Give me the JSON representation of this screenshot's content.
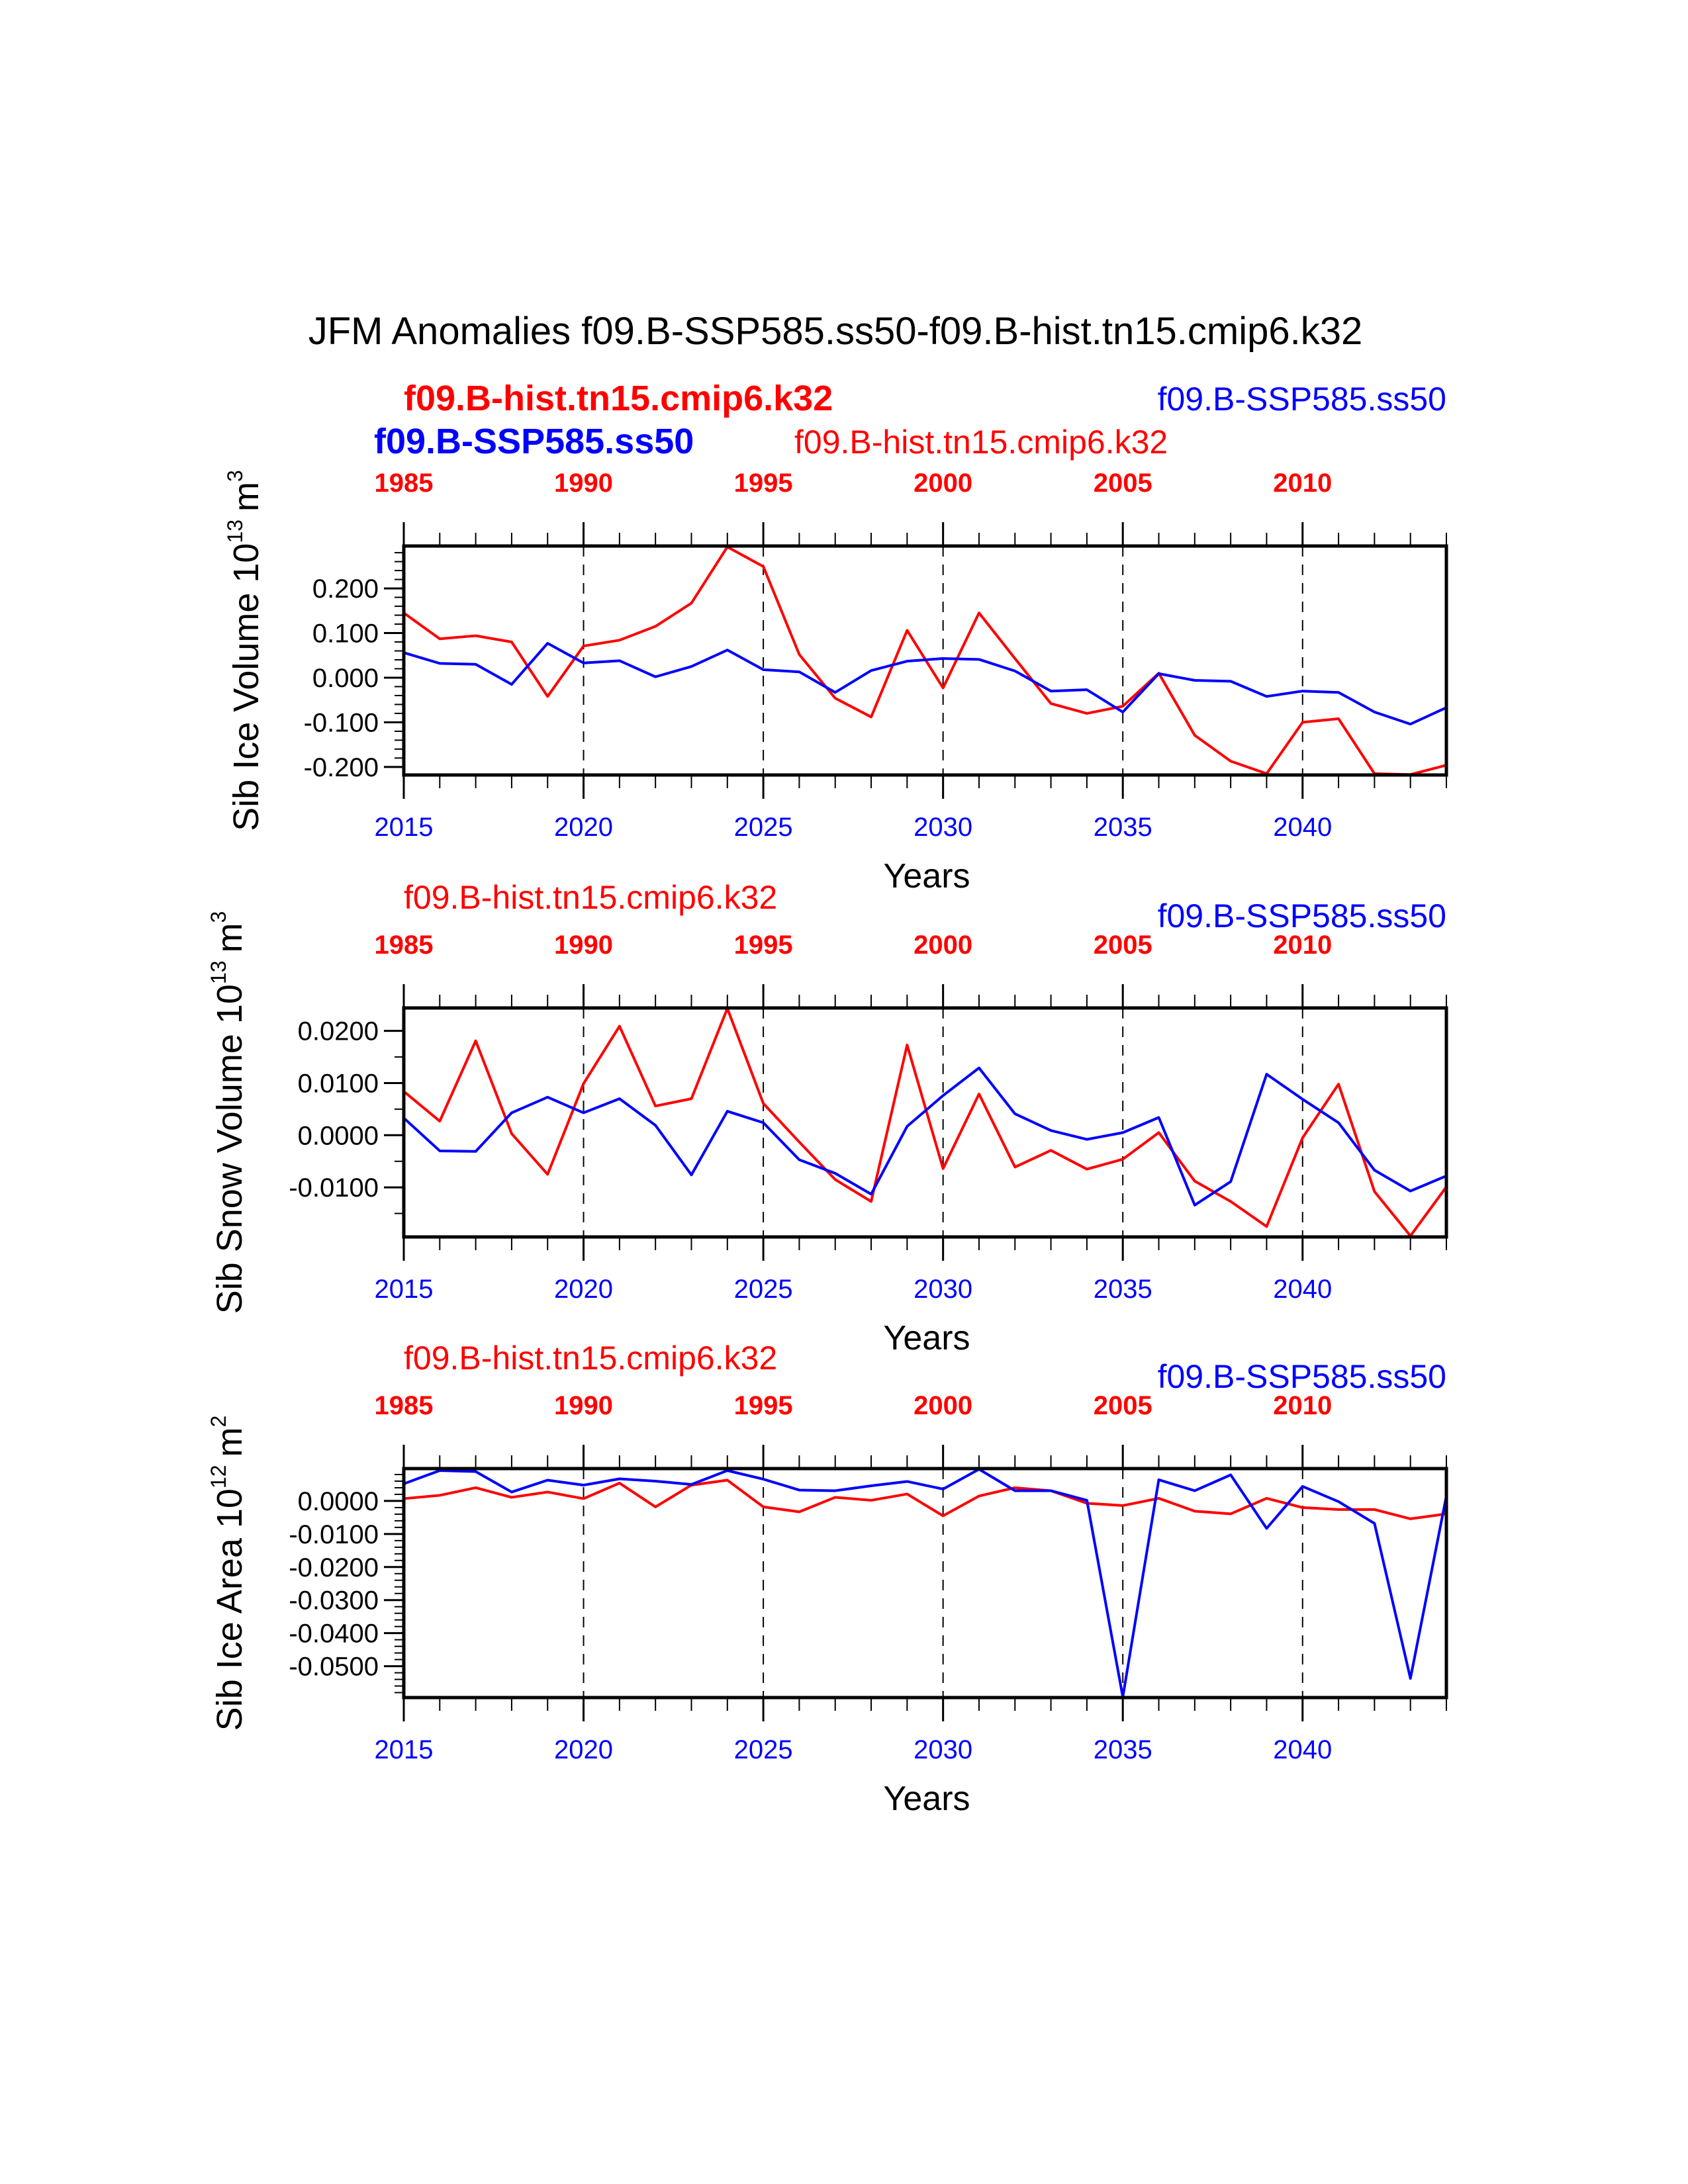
{
  "title": "JFM Anomalies f09.B-SSP585.ss50-f09.B-hist.tn15.cmip6.k32",
  "colors": {
    "ssp": "#0000ff",
    "hist": "#ff0000"
  },
  "chart_data": [
    {
      "type": "line",
      "ylabel": "Sib Ice Volume 10",
      "yunit_exp": "13",
      "yunit": "m",
      "yunit_pow": "3",
      "xlabel": "Years",
      "ylim": [
        -0.218,
        0.295
      ],
      "yticks": [
        -0.2,
        -0.1,
        0.0,
        0.1,
        0.2
      ],
      "ytick_labels": [
        "-0.200",
        "-0.100",
        "0.000",
        "0.100",
        "0.200"
      ],
      "yminor": 0.02,
      "x": [
        2015,
        2016,
        2017,
        2018,
        2019,
        2020,
        2021,
        2022,
        2023,
        2024,
        2025,
        2026,
        2027,
        2028,
        2029,
        2030,
        2031,
        2032,
        2033,
        2034,
        2035,
        2036,
        2037,
        2038,
        2039,
        2040,
        2041,
        2042,
        2043,
        2044
      ],
      "xlim": [
        2015,
        2044
      ],
      "bottom_ticks": [
        "2015",
        "2020",
        "2025",
        "2030",
        "2035",
        "2040"
      ],
      "top_ticks": [
        "1985",
        "1990",
        "1995",
        "2000",
        "2005",
        "2010"
      ],
      "series": [
        {
          "name": "f09.B-hist.tn15.cmip6.k32",
          "color": "#ff0000",
          "values": [
            0.145,
            0.087,
            0.094,
            0.08,
            -0.042,
            0.071,
            0.084,
            0.115,
            0.167,
            0.293,
            0.249,
            0.052,
            -0.046,
            -0.088,
            0.106,
            -0.023,
            0.145,
            0.043,
            -0.058,
            -0.08,
            -0.064,
            0.01,
            -0.129,
            -0.187,
            -0.215,
            -0.1,
            -0.092,
            -0.215,
            -0.217,
            -0.196
          ]
        },
        {
          "name": "f09.B-SSP585.ss50",
          "color": "#0000ff",
          "values": [
            0.056,
            0.032,
            0.03,
            -0.015,
            0.077,
            0.033,
            0.038,
            0.002,
            0.025,
            0.062,
            0.018,
            0.013,
            -0.033,
            0.016,
            0.037,
            0.043,
            0.041,
            0.015,
            -0.03,
            -0.027,
            -0.077,
            0.009,
            -0.006,
            -0.008,
            -0.042,
            -0.03,
            -0.033,
            -0.077,
            -0.104,
            -0.067
          ]
        }
      ],
      "labels": {
        "hist": "f09.B-hist.tn15.cmip6.k32",
        "ssp": "f09.B-SSP585.ss50",
        "ssp_bold": "f09.B-SSP585.ss50",
        "hist_bold": "f09.B-hist.tn15.cmip6.k32"
      }
    },
    {
      "type": "line",
      "ylabel": "Sib Snow Volume 10",
      "yunit_exp": "13",
      "yunit": "m",
      "yunit_pow": "3",
      "xlabel": "Years",
      "ylim": [
        -0.0195,
        0.0244
      ],
      "yticks": [
        -0.01,
        0.0,
        0.01,
        0.02
      ],
      "ytick_labels": [
        "-0.0100",
        "0.0000",
        "0.0100",
        "0.0200"
      ],
      "yminor": 0.005,
      "x": [
        2015,
        2016,
        2017,
        2018,
        2019,
        2020,
        2021,
        2022,
        2023,
        2024,
        2025,
        2026,
        2027,
        2028,
        2029,
        2030,
        2031,
        2032,
        2033,
        2034,
        2035,
        2036,
        2037,
        2038,
        2039,
        2040,
        2041,
        2042,
        2043,
        2044
      ],
      "xlim": [
        2015,
        2044
      ],
      "bottom_ticks": [
        "2015",
        "2020",
        "2025",
        "2030",
        "2035",
        "2040"
      ],
      "top_ticks": [
        "1985",
        "1990",
        "1995",
        "2000",
        "2005",
        "2010"
      ],
      "series": [
        {
          "name": "f09.B-hist.tn15.cmip6.k32",
          "color": "#ff0000",
          "values": [
            0.0084,
            0.0027,
            0.0181,
            0.0003,
            -0.0075,
            0.0099,
            0.0209,
            0.0056,
            0.007,
            0.0243,
            0.0061,
            -0.0013,
            -0.0085,
            -0.0127,
            0.0173,
            -0.0064,
            0.0079,
            -0.0061,
            -0.0029,
            -0.0065,
            -0.0046,
            0.0005,
            -0.0088,
            -0.0127,
            -0.0175,
            -0.0005,
            0.0098,
            -0.0108,
            -0.0193,
            -0.0099
          ]
        },
        {
          "name": "f09.B-SSP585.ss50",
          "color": "#0000ff",
          "values": [
            0.0033,
            -0.003,
            -0.0031,
            0.0043,
            0.0073,
            0.0043,
            0.007,
            0.0019,
            -0.0076,
            0.0046,
            0.0024,
            -0.0047,
            -0.0073,
            -0.0113,
            0.0017,
            0.0076,
            0.0129,
            0.0041,
            0.0009,
            -0.0008,
            0.0005,
            0.0034,
            -0.0134,
            -0.0089,
            0.0117,
            0.0069,
            0.0024,
            -0.0067,
            -0.0107,
            -0.0078
          ]
        }
      ],
      "labels": {
        "hist": "f09.B-hist.tn15.cmip6.k32",
        "ssp": "f09.B-SSP585.ss50"
      }
    },
    {
      "type": "line",
      "ylabel": "Sib Ice Area 10",
      "yunit_exp": "12",
      "yunit": "m",
      "yunit_pow": "2",
      "xlabel": "Years",
      "ylim": [
        -0.0595,
        0.0098
      ],
      "yticks": [
        -0.05,
        -0.04,
        -0.03,
        -0.02,
        -0.01,
        0.0
      ],
      "ytick_labels": [
        "-0.0500",
        "-0.0400",
        "-0.0300",
        "-0.0200",
        "-0.0100",
        "0.0000"
      ],
      "yminor": 0.002,
      "x": [
        2015,
        2016,
        2017,
        2018,
        2019,
        2020,
        2021,
        2022,
        2023,
        2024,
        2025,
        2026,
        2027,
        2028,
        2029,
        2030,
        2031,
        2032,
        2033,
        2034,
        2035,
        2036,
        2037,
        2038,
        2039,
        2040,
        2041,
        2042,
        2043,
        2044
      ],
      "xlim": [
        2015,
        2044
      ],
      "bottom_ticks": [
        "2015",
        "2020",
        "2025",
        "2030",
        "2035",
        "2040"
      ],
      "top_ticks": [
        "1985",
        "1990",
        "1995",
        "2000",
        "2005",
        "2010"
      ],
      "series": [
        {
          "name": "f09.B-hist.tn15.cmip6.k32",
          "color": "#ff0000",
          "values": [
            0.0007,
            0.0017,
            0.004,
            0.0011,
            0.0027,
            0.0007,
            0.0054,
            -0.0018,
            0.0048,
            0.0063,
            -0.0018,
            -0.0033,
            0.0011,
            0.0002,
            0.0021,
            -0.0045,
            0.0015,
            0.004,
            0.0031,
            -0.0007,
            -0.0014,
            0.0008,
            -0.0031,
            -0.0039,
            0.0008,
            -0.002,
            -0.0026,
            -0.0026,
            -0.0054,
            -0.0039
          ]
        },
        {
          "name": "f09.B-SSP585.ss50",
          "color": "#0000ff",
          "values": [
            0.0052,
            0.0092,
            0.0089,
            0.0027,
            0.0063,
            0.0048,
            0.0067,
            0.006,
            0.005,
            0.0092,
            0.0066,
            0.0033,
            0.0031,
            0.0046,
            0.0059,
            0.0036,
            0.0096,
            0.0031,
            0.0031,
            0.0002,
            -0.0593,
            0.0064,
            0.0031,
            0.0079,
            -0.0083,
            0.0044,
            -0.0002,
            -0.0068,
            -0.0537,
            0.0015
          ]
        }
      ],
      "labels": {
        "hist": "f09.B-hist.tn15.cmip6.k32",
        "ssp": "f09.B-SSP585.ss50"
      }
    }
  ]
}
